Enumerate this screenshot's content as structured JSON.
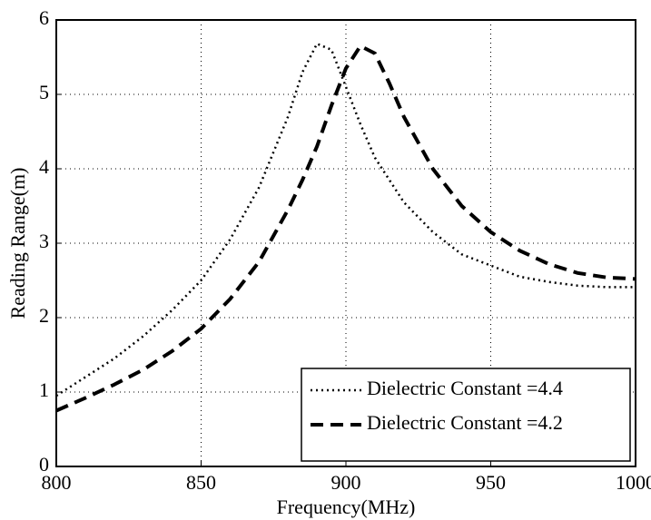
{
  "chart_data": {
    "type": "line",
    "xlabel": "Frequency(MHz)",
    "ylabel": "Reading Range(m)",
    "x": [
      800,
      810,
      820,
      830,
      840,
      850,
      860,
      870,
      880,
      885,
      890,
      895,
      900,
      905,
      910,
      915,
      920,
      930,
      940,
      950,
      960,
      970,
      980,
      990,
      1000
    ],
    "series": [
      {
        "name": "Dielectric Constant =4.4",
        "color": "#000000",
        "dash": "dotted",
        "values": [
          0.95,
          1.2,
          1.45,
          1.75,
          2.1,
          2.5,
          3.05,
          3.75,
          4.7,
          5.3,
          5.68,
          5.6,
          5.1,
          4.6,
          4.15,
          3.85,
          3.55,
          3.15,
          2.85,
          2.7,
          2.55,
          2.48,
          2.43,
          2.41,
          2.41
        ]
      },
      {
        "name": "Dielectric Constant =4.2",
        "color": "#000000",
        "dash": "dashed",
        "values": [
          0.75,
          0.92,
          1.1,
          1.3,
          1.55,
          1.85,
          2.25,
          2.75,
          3.45,
          3.85,
          4.3,
          4.85,
          5.35,
          5.65,
          5.55,
          5.15,
          4.7,
          4.0,
          3.5,
          3.15,
          2.9,
          2.72,
          2.6,
          2.54,
          2.52
        ]
      }
    ],
    "xlim": [
      800,
      1000
    ],
    "xticks": [
      800,
      850,
      900,
      950,
      1000
    ],
    "ylim": [
      0,
      6
    ],
    "yticks": [
      0,
      1,
      2,
      3,
      4,
      5,
      6
    ],
    "grid": true,
    "legend": "lower right"
  }
}
